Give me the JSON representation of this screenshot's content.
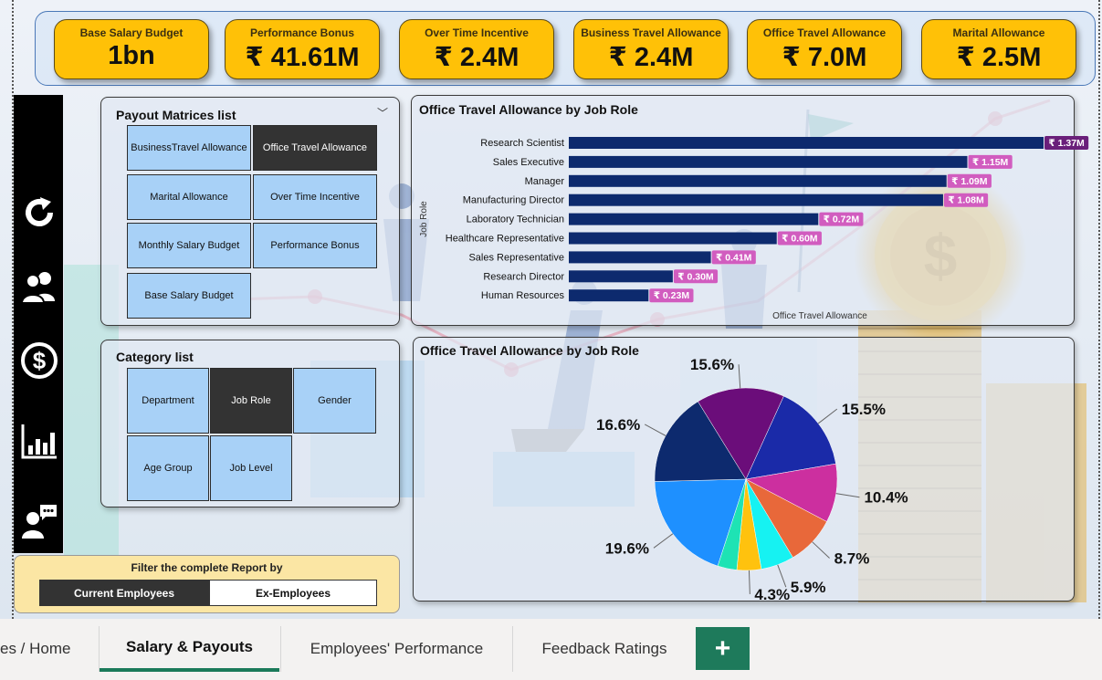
{
  "kpis": [
    {
      "label": "Base Salary Budget",
      "value": "1bn"
    },
    {
      "label": "Performance Bonus",
      "value": "₹ 41.61M"
    },
    {
      "label": "Over Time Incentive",
      "value": "₹ 2.4M"
    },
    {
      "label": "Business Travel Allowance",
      "value": "₹ 2.4M"
    },
    {
      "label": "Office Travel Allowance",
      "value": "₹ 7.0M"
    },
    {
      "label": "Marital Allowance",
      "value": "₹ 2.5M"
    }
  ],
  "nav": {
    "icons": [
      "reset-icon",
      "people-icon",
      "dollar-icon",
      "bar-chart-icon",
      "feedback-icon"
    ]
  },
  "payout_panel": {
    "title": "Payout Matrices list",
    "items": [
      {
        "label": "BusinessTravel Allowance",
        "selected": false
      },
      {
        "label": "Office Travel Allowance",
        "selected": true
      },
      {
        "label": "Marital Allowance",
        "selected": false
      },
      {
        "label": "Over Time Incentive",
        "selected": false
      },
      {
        "label": "Monthly Salary Budget",
        "selected": false
      },
      {
        "label": "Performance Bonus",
        "selected": false
      },
      {
        "label": "Base Salary Budget",
        "selected": false
      }
    ]
  },
  "category_panel": {
    "title": "Category list",
    "items": [
      {
        "label": "Department",
        "selected": false
      },
      {
        "label": "Job Role",
        "selected": true
      },
      {
        "label": "Gender",
        "selected": false
      },
      {
        "label": "Age Group",
        "selected": false
      },
      {
        "label": "Job Level",
        "selected": false
      }
    ]
  },
  "filter": {
    "title": "Filter the complete Report by",
    "options": [
      {
        "label": "Current Employees",
        "selected": true
      },
      {
        "label": "Ex-Employees",
        "selected": false
      }
    ]
  },
  "tabs": {
    "items": [
      "es / Home",
      "Salary & Payouts",
      "Employees' Performance",
      "Feedback Ratings"
    ],
    "active": "Salary & Payouts",
    "add_label": "+"
  },
  "colors": {
    "bar": "#0d2a6e",
    "data_label_bg": "#d15cbf",
    "data_label_top_bg": "#6a1f7a",
    "kpi_bg": "#ffc107",
    "tile_bg": "#a8d1f7",
    "tile_selected": "#333333",
    "tab_accent": "#1b7a5a"
  },
  "chart_data": [
    {
      "type": "bar",
      "orientation": "horizontal",
      "title": "Office Travel Allowance by Job Role",
      "xlabel": "Office Travel Allowance",
      "ylabel": "Job Role",
      "categories": [
        "Research Scientist",
        "Sales Executive",
        "Manager",
        "Manufacturing Director",
        "Laboratory Technician",
        "Healthcare Representative",
        "Sales Representative",
        "Research Director",
        "Human Resources"
      ],
      "values": [
        1.37,
        1.15,
        1.09,
        1.08,
        0.72,
        0.6,
        0.41,
        0.3,
        0.23
      ],
      "data_labels": [
        "₹ 1.37M",
        "₹ 1.15M",
        "₹ 1.09M",
        "₹ 1.08M",
        "₹ 0.72M",
        "₹ 0.60M",
        "₹ 0.41M",
        "₹ 0.30M",
        "₹ 0.23M"
      ],
      "unit": "M"
    },
    {
      "type": "pie",
      "title": "Office Travel Allowance by Job Role",
      "slices": [
        {
          "value": 19.6,
          "label": "19.6%",
          "color": "#1e90ff"
        },
        {
          "value": 16.6,
          "label": "16.6%",
          "color": "#0d2a6e"
        },
        {
          "value": 15.6,
          "label": "15.6%",
          "color": "#6b0d7a"
        },
        {
          "value": 15.5,
          "label": "15.5%",
          "color": "#1a2aa8"
        },
        {
          "value": 10.4,
          "label": "10.4%",
          "color": "#cc2f9f"
        },
        {
          "value": 8.7,
          "label": "8.7%",
          "color": "#e8683a"
        },
        {
          "value": 5.9,
          "label": "5.9%",
          "color": "#16f2f2"
        },
        {
          "value": 4.3,
          "label": "4.3%",
          "color": "#ffc20e"
        },
        {
          "value": 3.4,
          "label": "",
          "color": "#1ee3b4"
        }
      ]
    }
  ]
}
